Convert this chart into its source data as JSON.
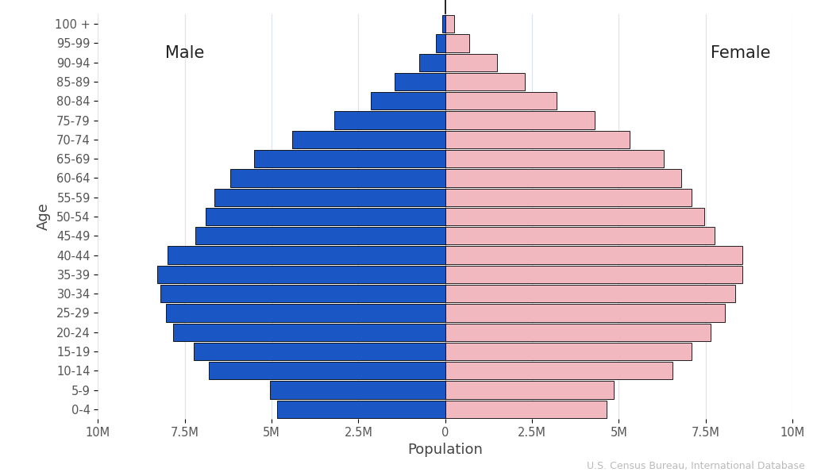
{
  "xlabel": "Population",
  "ylabel": "Age",
  "age_groups": [
    "0-4",
    "5-9",
    "10-14",
    "15-19",
    "20-24",
    "25-29",
    "30-34",
    "35-39",
    "40-44",
    "45-49",
    "50-54",
    "55-59",
    "60-64",
    "65-69",
    "70-74",
    "75-79",
    "80-84",
    "85-89",
    "90-94",
    "95-99",
    "100 +"
  ],
  "male": [
    4.85,
    5.05,
    6.8,
    7.25,
    7.85,
    8.05,
    8.2,
    8.3,
    8.0,
    7.2,
    6.9,
    6.65,
    6.2,
    5.5,
    4.4,
    3.2,
    2.15,
    1.45,
    0.75,
    0.28,
    0.08
  ],
  "female": [
    4.65,
    4.85,
    6.55,
    7.1,
    7.65,
    8.05,
    8.35,
    8.55,
    8.55,
    7.75,
    7.45,
    7.1,
    6.8,
    6.3,
    5.3,
    4.3,
    3.2,
    2.3,
    1.5,
    0.7,
    0.25
  ],
  "male_color": "#1a56c4",
  "female_color": "#f2b8c0",
  "bar_edge_color": "#000000",
  "bar_edge_width": 0.6,
  "male_label": "Male",
  "female_label": "Female",
  "xlim": 10,
  "xtick_vals": [
    -10,
    -7.5,
    -5,
    -2.5,
    0,
    2.5,
    5,
    7.5,
    10
  ],
  "xtick_labels": [
    "10M",
    "7.5M",
    "5M",
    "2.5M",
    "0",
    "2.5M",
    "5M",
    "7.5M",
    "10M"
  ],
  "source_text": "U.S. Census Bureau, International Database",
  "background_color": "#ffffff",
  "grid_color": "#dde4ef",
  "label_fontsize": 13,
  "tick_fontsize": 10.5,
  "source_fontsize": 9,
  "male_label_fontsize": 15,
  "female_label_fontsize": 15,
  "bar_height": 0.92
}
